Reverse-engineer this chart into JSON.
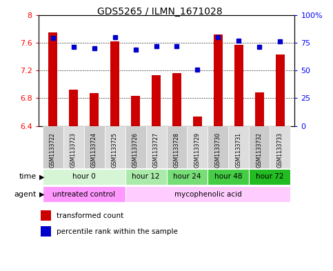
{
  "title": "GDS5265 / ILMN_1671028",
  "samples": [
    "GSM1133722",
    "GSM1133723",
    "GSM1133724",
    "GSM1133725",
    "GSM1133726",
    "GSM1133727",
    "GSM1133728",
    "GSM1133729",
    "GSM1133730",
    "GSM1133731",
    "GSM1133732",
    "GSM1133733"
  ],
  "bar_values": [
    7.75,
    6.92,
    6.87,
    7.62,
    6.83,
    7.13,
    7.16,
    6.54,
    7.72,
    7.57,
    6.88,
    7.43
  ],
  "percentile_values": [
    79,
    71,
    70,
    80,
    69,
    72,
    72,
    51,
    80,
    77,
    71,
    76
  ],
  "ylim_left": [
    6.4,
    8.0
  ],
  "ylim_right": [
    0,
    100
  ],
  "bar_color": "#cc0000",
  "dot_color": "#0000cc",
  "background_color": "#ffffff",
  "grid_color": "#000000",
  "yticks_left": [
    6.4,
    6.8,
    7.2,
    7.6,
    8.0
  ],
  "ytick_labels_left": [
    "6.4",
    "6.8",
    "7.2",
    "7.6",
    "8"
  ],
  "yticks_right": [
    0,
    25,
    50,
    75,
    100
  ],
  "ytick_labels_right": [
    "0",
    "25",
    "50",
    "75",
    "100%"
  ],
  "time_groups": [
    {
      "label": "hour 0",
      "start": 0,
      "end": 3,
      "color": "#d5f5d5"
    },
    {
      "label": "hour 12",
      "start": 4,
      "end": 5,
      "color": "#aaeaaa"
    },
    {
      "label": "hour 24",
      "start": 6,
      "end": 7,
      "color": "#77dd77"
    },
    {
      "label": "hour 48",
      "start": 8,
      "end": 9,
      "color": "#44cc44"
    },
    {
      "label": "hour 72",
      "start": 10,
      "end": 11,
      "color": "#22bb22"
    }
  ],
  "agent_groups": [
    {
      "label": "untreated control",
      "start": 0,
      "end": 3,
      "color": "#ff99ff"
    },
    {
      "label": "mycophenolic acid",
      "start": 4,
      "end": 11,
      "color": "#ffccff"
    }
  ],
  "legend_bar_label": "transformed count",
  "legend_dot_label": "percentile rank within the sample",
  "time_label": "time",
  "agent_label": "agent"
}
